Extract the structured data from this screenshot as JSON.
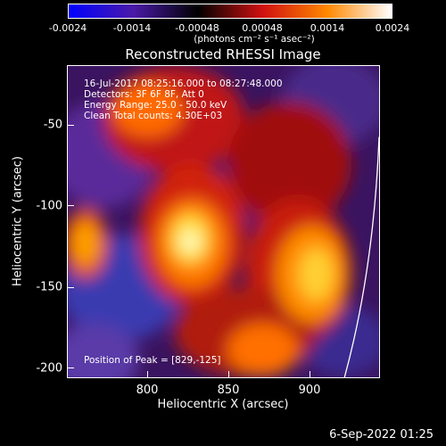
{
  "colorbar": {
    "ticks": [
      "-0.0024",
      "-0.0014",
      "-0.00048",
      "0.00048",
      "0.0014",
      "0.0024"
    ],
    "unit": "(photons cm⁻² s⁻¹ asec⁻²)",
    "colors": [
      "#0000ff",
      "#4a1aa8",
      "#000000",
      "#d01010",
      "#ff8800",
      "#ffffff"
    ]
  },
  "title": "Reconstructed RHESSI Image",
  "info": {
    "time": "16-Jul-2017 08:25:16.000 to 08:27:48.000",
    "detectors": "Detectors: 3F 6F 8F, Att 0",
    "energy": "Energy Range: 25.0 - 50.0 keV",
    "clean": "Clean    Total counts: 4.30E+03",
    "peak": "Position of Peak = [829,-125]"
  },
  "axes": {
    "xlabel": "Heliocentric X (arcsec)",
    "ylabel": "Heliocentric Y (arcsec)",
    "xticks": [
      "800",
      "850",
      "900"
    ],
    "yticks": [
      "-50",
      "-100",
      "-150",
      "-200"
    ]
  },
  "footer": "6-Sep-2022 01:25"
}
